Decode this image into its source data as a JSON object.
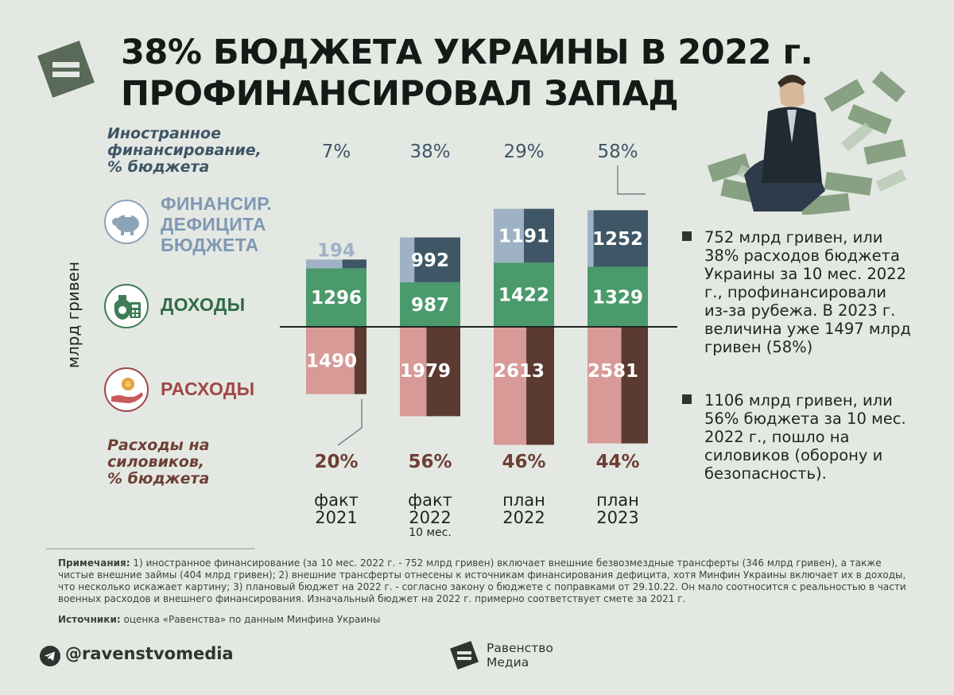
{
  "title": {
    "line1": "38% БЮДЖЕТА УКРАИНЫ В 2022 г.",
    "line2": "ПРОФИНАНСИРОВАЛ ЗАПАД"
  },
  "colors": {
    "deficit_light": "#9fb1c4",
    "deficit_dark": "#3f5666",
    "income": "#4a9a6b",
    "expense_light": "#d79a97",
    "expense_dark": "#5b3a31",
    "logo": "#596a58"
  },
  "labels": {
    "foreign_line1": "Иностранное",
    "foreign_line2": "финансирование,",
    "foreign_line3": "% бюджета",
    "security_line1": "Расходы на",
    "security_line2": "силовиков,",
    "security_line3": "% бюджета",
    "yaxis": "млрд гривен"
  },
  "legend": {
    "deficit": {
      "line1": "ФИНАНСИР.",
      "line2": "ДЕФИЦИТА",
      "line3": "БЮДЖЕТА",
      "icon": "piggy-bank-icon"
    },
    "income": {
      "line1": "ДОХОДЫ",
      "icon": "money-bag-calculator-icon"
    },
    "expense": {
      "line1": "РАСХОДЫ",
      "icon": "coin-hand-icon"
    }
  },
  "chart_data": {
    "type": "bar",
    "categories": [
      "факт 2021",
      "факт 2022 10 мес.",
      "план 2022",
      "план 2023"
    ],
    "category_lines": [
      [
        "факт",
        "2021",
        ""
      ],
      [
        "факт",
        "2022",
        "10 мес."
      ],
      [
        "план",
        "2022",
        ""
      ],
      [
        "план",
        "2023",
        ""
      ]
    ],
    "series": [
      {
        "name": "ФИНАНСИР. ДЕФИЦИТА БЮДЖЕТА",
        "values": [
          194,
          992,
          1191,
          1252
        ],
        "foreign_share": [
          0.4,
          0.76,
          0.5,
          0.9
        ]
      },
      {
        "name": "ДОХОДЫ",
        "values": [
          1296,
          987,
          1422,
          1329
        ]
      },
      {
        "name": "РАСХОДЫ",
        "values": [
          1490,
          1979,
          2613,
          2581
        ],
        "security_share": [
          0.2,
          0.56,
          0.46,
          0.44
        ]
      }
    ],
    "foreign_pct": [
      "7%",
      "38%",
      "29%",
      "58%"
    ],
    "security_pct": [
      "20%",
      "56%",
      "46%",
      "44%"
    ]
  },
  "notes": [
    "752 млрд гривен, или 38% расходов бюджета Украины за 10 мес. 2022 г., профинансировали из-за рубежа. В 2023 г. величина уже 1497 млрд гривен (58%)",
    "1106 млрд гривен, или 56% бюджета за 10 мес. 2022 г., пошло на силовиков (оборону и безопасность)."
  ],
  "footnote": {
    "label": "Примечания:",
    "text": " 1) иностранное финансирование (за 10 мес. 2022 г. - 752 млрд гривен) включает внешние безвозмездные трансферты (346 млрд гривен), а также чистые внешние займы (404 млрд гривен); 2) внешние трансферты отнесены к источникам финансирования дефицита, хотя Минфин Украины включает их в доходы, что несколько искажает картину; 3) плановый бюджет на 2022 г. - согласно закону о бюджете с поправками от 29.10.22. Он мало соотносится с реальностью в части военных расходов и внешнего финансирования. Изначальный бюджет на 2022 г. примерно соответствует смете за 2021 г."
  },
  "sources": {
    "label": "Источники:",
    "text": " оценка «Равенства» по данным Минфина Украины"
  },
  "footer": {
    "handle": "@ravenstvomedia",
    "brand_line1": "Равенство",
    "brand_line2": "Медиа"
  }
}
